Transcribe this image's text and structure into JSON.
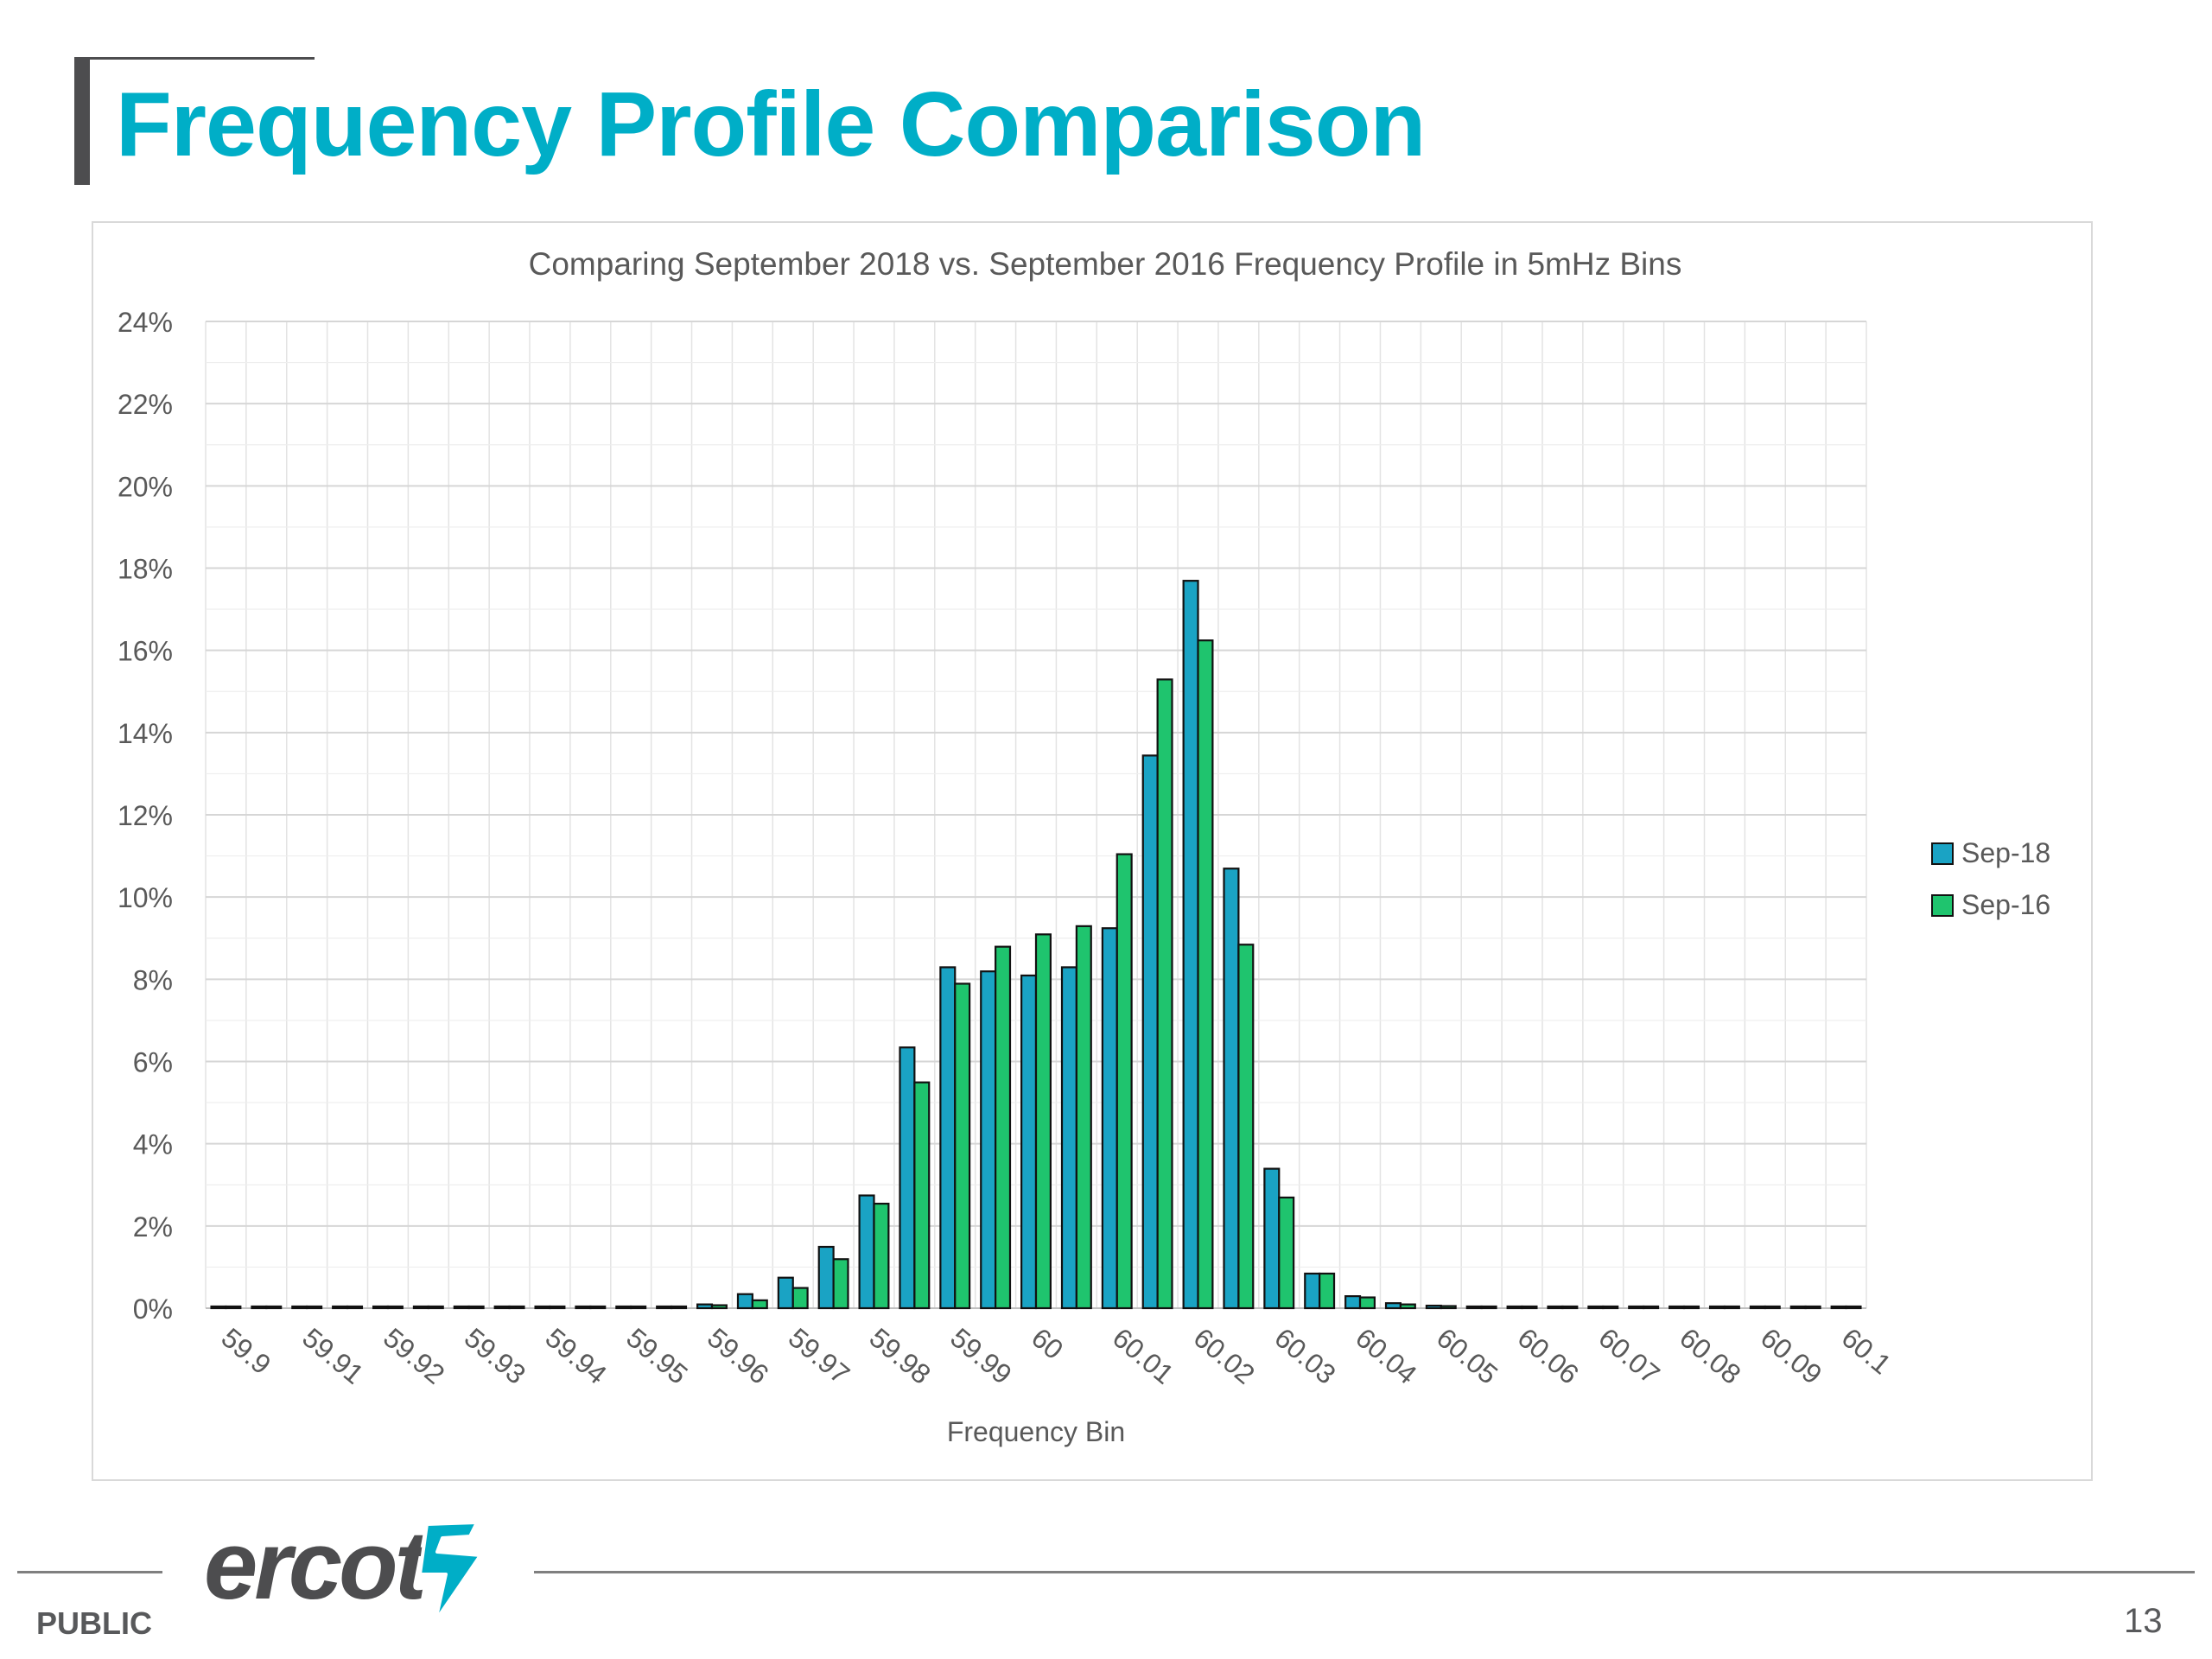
{
  "slide": {
    "title": "Frequency Profile Comparison",
    "footer_label": "PUBLIC",
    "page_number": "13",
    "logo_text": "ercot"
  },
  "colors": {
    "title": "#00aec7",
    "sep18": "#1aa3c4",
    "sep16": "#1fc46e",
    "grid": "#e3e3e3",
    "axis_text": "#595959"
  },
  "chart_data": {
    "type": "bar",
    "title": "Comparing September 2018 vs. September 2016 Frequency Profile in 5mHz Bins",
    "xlabel": "Frequency Bin",
    "ylabel": "",
    "ylim": [
      0,
      24
    ],
    "y_ticks": [
      "0%",
      "2%",
      "4%",
      "6%",
      "8%",
      "10%",
      "12%",
      "14%",
      "16%",
      "18%",
      "20%",
      "22%",
      "24%"
    ],
    "x_tick_labels": [
      "59.9",
      "59.91",
      "59.92",
      "59.93",
      "59.94",
      "59.95",
      "59.96",
      "59.97",
      "59.98",
      "59.99",
      "60",
      "60.01",
      "60.02",
      "60.03",
      "60.04",
      "60.05",
      "60.06",
      "60.07",
      "60.08",
      "60.09",
      "60.1"
    ],
    "grid": true,
    "legend_position": "right",
    "series": [
      {
        "name": "Sep-18",
        "values": [
          0,
          0,
          0,
          0,
          0,
          0,
          0,
          0,
          0,
          0,
          0,
          0,
          0.05,
          0.3,
          0.7,
          1.45,
          2.7,
          6.3,
          8.25,
          8.15,
          8.05,
          8.25,
          9.2,
          13.4,
          17.65,
          10.65,
          3.35,
          0.8,
          0.25,
          0.08,
          0.02,
          0,
          0,
          0,
          0,
          0,
          0,
          0,
          0,
          0,
          0
        ]
      },
      {
        "name": "Sep-16",
        "values": [
          0,
          0,
          0,
          0,
          0,
          0,
          0,
          0,
          0,
          0,
          0,
          0,
          0.03,
          0.15,
          0.45,
          1.15,
          2.5,
          5.45,
          7.85,
          8.75,
          9.05,
          9.25,
          11.0,
          15.25,
          16.2,
          8.8,
          2.65,
          0.8,
          0.22,
          0.05,
          0.01,
          0,
          0,
          0,
          0,
          0,
          0,
          0,
          0,
          0,
          0
        ]
      }
    ]
  }
}
